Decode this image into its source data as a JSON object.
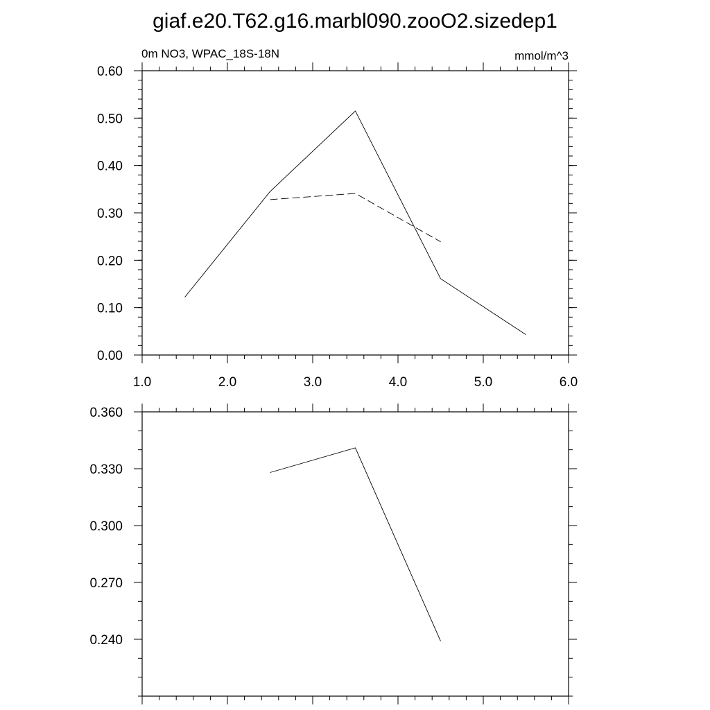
{
  "title": "giaf.e20.T62.g16.marbl090.zooO2.sizedep1",
  "chart_data": [
    {
      "type": "line",
      "left_title": "0m NO3, WPAC_18S-18N",
      "right_title": "mmol/m^3",
      "xlim": [
        1.0,
        6.0
      ],
      "ylim": [
        0.0,
        0.6
      ],
      "x_ticks": [
        "1.0",
        "2.0",
        "3.0",
        "4.0",
        "5.0",
        "6.0"
      ],
      "y_ticks": [
        "0.00",
        "0.10",
        "0.20",
        "0.30",
        "0.40",
        "0.50",
        "0.60"
      ],
      "grid": false,
      "series": [
        {
          "style": "solid",
          "x": [
            1.5,
            2.5,
            3.5,
            4.5,
            5.5
          ],
          "y": [
            0.122,
            0.345,
            0.515,
            0.161,
            0.043
          ]
        },
        {
          "style": "dashed",
          "x": [
            2.5,
            3.5,
            4.5
          ],
          "y": [
            0.328,
            0.341,
            0.239
          ]
        }
      ]
    },
    {
      "type": "line",
      "xlim": [
        1.0,
        6.0
      ],
      "ylim": [
        0.21,
        0.36
      ],
      "x_ticks": [],
      "y_ticks": [
        "0.240",
        "0.270",
        "0.300",
        "0.330",
        "0.360"
      ],
      "grid": false,
      "series": [
        {
          "style": "solid",
          "x": [
            2.5,
            3.5,
            4.5
          ],
          "y": [
            0.328,
            0.341,
            0.239
          ]
        }
      ]
    }
  ]
}
